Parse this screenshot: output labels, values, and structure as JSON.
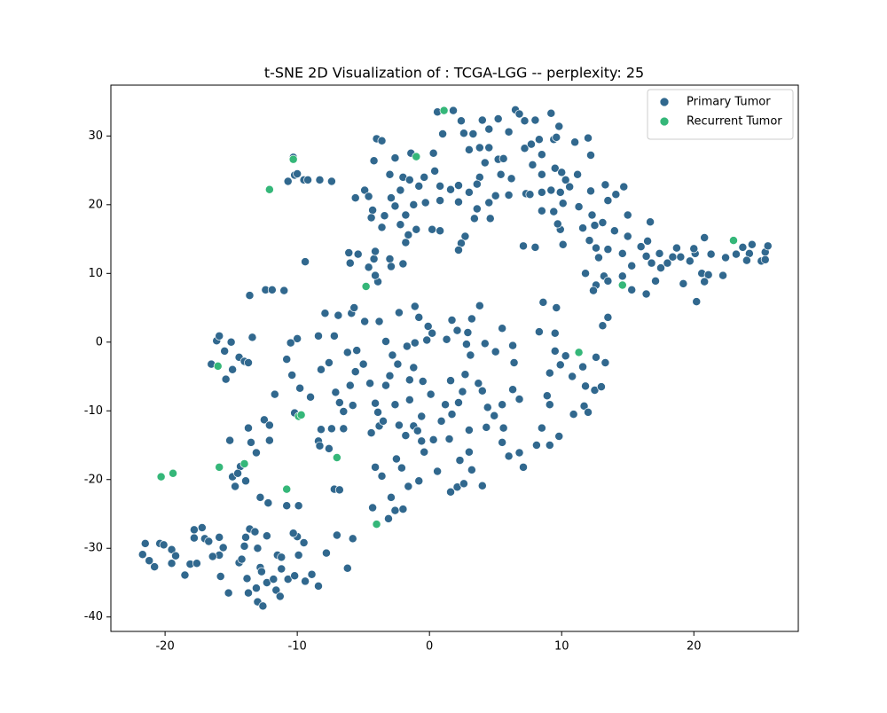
{
  "chart_data": {
    "type": "scatter",
    "title": "t-SNE 2D Visualization of : TCGA-LGG -- perplexity: 25",
    "xlim": [
      -24.1,
      27.9
    ],
    "ylim": [
      -42.1,
      37.4
    ],
    "xticks": [
      -20,
      -10,
      0,
      10,
      20
    ],
    "yticks": [
      -40,
      -30,
      -20,
      -10,
      0,
      10,
      20,
      30
    ],
    "legend": "upper right",
    "series": [
      {
        "name": "Primary Tumor",
        "color": "#31688e",
        "x": [
          -10.2,
          -10,
          -10.3,
          -9.5,
          -9.2,
          -7.4,
          -8.3,
          -10.7,
          -4,
          -3.6,
          -2.6,
          -4.2,
          -3,
          -2,
          -1.4,
          0.3,
          1,
          1.8,
          0.6,
          2.4,
          2.6,
          3.3,
          4,
          4.5,
          5.2,
          6.5,
          6.8,
          7.2,
          8,
          9.2,
          6,
          4.5,
          3.8,
          3,
          4.2,
          5.2,
          5.6,
          7.2,
          7.7,
          8.3,
          9.4,
          9.8,
          9.6,
          11,
          12,
          12.2,
          8.5,
          7.8,
          8.5,
          9.5,
          10,
          10.3,
          11.2,
          6.2,
          5.4,
          3.8,
          3.6,
          2.2,
          1.6,
          0.8,
          -0.8,
          -1.5,
          -0.4,
          0.4,
          -2.2,
          -2.9,
          -4.9,
          -4.6,
          -5.6,
          -4.3,
          -3.4,
          -2.6,
          -1.8,
          -1.2,
          -0.3,
          0.8,
          2.2,
          3,
          3.6,
          4.5,
          5,
          4.6,
          3.4,
          2.7,
          2.4,
          2.2,
          0.8,
          0.2,
          -1,
          -1.6,
          -2.2,
          -3.6,
          -4.4,
          -1.8,
          -2,
          -3,
          -2.9,
          -4.2,
          -4.1,
          -5.4,
          -6.1,
          -6,
          -4.6,
          -9.4,
          -3.9,
          -4.1,
          6,
          7.3,
          7.6,
          8.5,
          9.2,
          9.9,
          10.6,
          10.1,
          11.3,
          12.2,
          13.3,
          14.1,
          14.7,
          13.5,
          12.3,
          11.6,
          12.5,
          13.1,
          14,
          15,
          16,
          16.7,
          15,
          9.9,
          9.7,
          9.4,
          8.5,
          7.1,
          8,
          10.1,
          12.1,
          12.6,
          12.8,
          13.5,
          14.6,
          15.3,
          14.6,
          13.2,
          12.6,
          11.8,
          12.4,
          13.5,
          15.3,
          16.4,
          17.1,
          17.5,
          16.8,
          16.4,
          18,
          18.4,
          19,
          19.2,
          19.7,
          20.1,
          20,
          20.6,
          21.1,
          20.8,
          21.3,
          22.2,
          22.4,
          23.2,
          23.7,
          24.4,
          24.2,
          24,
          25.1,
          25.4,
          25.6,
          25.4,
          20.2,
          20.8,
          18.7,
          16.5,
          17.4,
          -10,
          -10.5,
          -10.8,
          -10.4,
          -11.7,
          -9.8,
          -9,
          -8.4,
          -8.2,
          -7.6,
          -7.2,
          -7.1,
          -6.8,
          -6.5,
          -7.4,
          -8.2,
          -8.4,
          -8.3,
          -7.6,
          -6.5,
          -5.8,
          -6,
          -5.6,
          -5,
          -6.2,
          -5.9,
          -5.7,
          -6.9,
          -7.9,
          -4.9,
          -3.8,
          -3.3,
          -2.8,
          -2.4,
          -3,
          -3.3,
          -4.5,
          -4.1,
          -3.9,
          -3.8,
          -4.4,
          -4.1,
          -3.6,
          -2.5,
          -2.1,
          -1.6,
          -0.8,
          -2.9,
          -2,
          -2.6,
          -3.1,
          -4.3,
          -5.8,
          -7,
          -6.2,
          -7.2,
          -6.8,
          -2.3,
          -1.1,
          -0.8,
          -0.1,
          0.2,
          -0.2,
          -1.1,
          -1.7,
          -1.2,
          -0.5,
          0.1,
          -0.6,
          -1.2,
          -1.8,
          -0.6,
          0.3,
          -0.4,
          0.6,
          1.6,
          2.1,
          2.6,
          4,
          3.2,
          2.3,
          3,
          1.5,
          1.7,
          2.2,
          2.5,
          1.6,
          2.7,
          3.7,
          4,
          3.1,
          2.8,
          2.9,
          2.1,
          1.3,
          1.7,
          3.2,
          3.8,
          4.2,
          5,
          5.5,
          6.3,
          6.4,
          6.3,
          6.8,
          5.5,
          4.9,
          4.3,
          5.6,
          5.5,
          6,
          7.1,
          8.1,
          8.5,
          9.1,
          8.9,
          9.1,
          9.9,
          9.5,
          8.3,
          9.5,
          9.6,
          8.6,
          10.3,
          10.8,
          10.9,
          11.7,
          12,
          12.5,
          11.8,
          11.6,
          12.6,
          13,
          13.3,
          13.1,
          13.5,
          9.8,
          9.1,
          6.8,
          -1.5,
          -1.5,
          -2.6,
          -3.5,
          -2.3,
          -0.9,
          0.9,
          1.2,
          3,
          4.4,
          -5.5,
          -10.2,
          -12.5,
          -12.1,
          -13.7,
          -12.1,
          -13.5,
          -13.1,
          -16.1,
          -15.9,
          -15,
          -15.5,
          -14.4,
          -13.4,
          -14,
          -13.7,
          -14.9,
          -15.4,
          -16.5,
          -14.9,
          -14.3,
          -14.5,
          -13.9,
          -14.7,
          -15.1,
          -12.8,
          -12.2,
          -10.8,
          -9.9,
          -21.7,
          -21.2,
          -20.8,
          -21.5,
          -20.4,
          -20.1,
          -19.5,
          -19.2,
          -19.5,
          -18.5,
          -18.1,
          -17.6,
          -17.8,
          -17.8,
          -17.2,
          -17,
          -16.7,
          -15.9,
          -15.6,
          -15.9,
          -16.4,
          -15.8,
          -15.2,
          -14.4,
          -14.2,
          -14,
          -13.9,
          -13.6,
          -13.2,
          -13,
          -12.3,
          -12.8,
          -12.7,
          -12.3,
          -13.1,
          -13.8,
          -13.7,
          -13,
          -12.6,
          -11.8,
          -11.6,
          -11.3,
          -11.2,
          -11.5,
          -11.2,
          -10.7,
          -10.2,
          -9.9,
          -10,
          -10.3,
          -9.5,
          -9.4,
          -8.9,
          -8.4,
          -7.8,
          -13.6,
          -12.4,
          -11.9,
          -11
        ],
        "values": [
          24.3,
          24.5,
          26.9,
          23.6,
          23.6,
          23.4,
          23.6,
          23.4,
          29.6,
          29.3,
          26.8,
          26.4,
          24.4,
          24,
          27.5,
          27.5,
          30.3,
          33.7,
          33.5,
          32.2,
          30.4,
          30.3,
          32.3,
          31,
          32.5,
          33.8,
          33.2,
          32.2,
          32.3,
          33.3,
          30.6,
          28.3,
          28.3,
          28,
          26.1,
          26.6,
          26.7,
          28.2,
          28.8,
          29.5,
          29.5,
          31.4,
          29.8,
          29.1,
          29.7,
          27.2,
          27.3,
          25.8,
          24.4,
          25.3,
          24.7,
          23.6,
          24.4,
          23.8,
          24.4,
          24,
          23,
          22.8,
          22.2,
          22.7,
          22.7,
          23.6,
          24,
          24.9,
          22.1,
          21,
          22.1,
          21.2,
          21,
          19.2,
          18.4,
          19.8,
          18.5,
          20,
          20.3,
          20.6,
          20.4,
          21.8,
          19.4,
          20.3,
          21.3,
          18,
          18,
          15.4,
          14.4,
          13.4,
          16.2,
          16.4,
          16.4,
          15.6,
          17.1,
          16.7,
          18.1,
          14.5,
          11.4,
          12.1,
          11,
          12.1,
          13.2,
          12.8,
          13,
          11.5,
          10.9,
          11.7,
          8.8,
          9.7,
          21.4,
          21.6,
          21.5,
          21.8,
          22.1,
          21.8,
          22.6,
          20.2,
          19.7,
          22,
          22.9,
          21.5,
          22.6,
          20.6,
          18.5,
          16.6,
          17,
          17.4,
          16.2,
          15.4,
          13.9,
          17.5,
          18.5,
          16.4,
          17.2,
          19,
          19.1,
          14,
          13.8,
          14.2,
          14.8,
          13.7,
          12.3,
          13.5,
          12.9,
          11.1,
          9.6,
          9.6,
          8.3,
          10,
          7.5,
          8.9,
          7.6,
          7,
          8.9,
          10.8,
          11.5,
          12.5,
          11.5,
          12.4,
          12.4,
          8.5,
          11.8,
          12.9,
          13.6,
          10,
          9.8,
          8.8,
          12.8,
          9.7,
          12.3,
          12.8,
          13.8,
          14.2,
          12.9,
          11.9,
          11.8,
          13.1,
          14,
          12,
          5.9,
          15.2,
          13.7,
          14.7,
          12.9,
          0.5,
          -0.1,
          -2.5,
          -4.8,
          -7.6,
          -6.7,
          -8,
          0.9,
          -4,
          -3,
          0.9,
          -7.3,
          -8.8,
          -10.1,
          -12.6,
          -12.7,
          -14.4,
          -15.1,
          -15.5,
          -12.6,
          -9.2,
          -6.3,
          -4.3,
          -3.2,
          -1.5,
          4.2,
          5,
          3.9,
          4.2,
          3,
          3,
          0.1,
          -1.9,
          -3.2,
          -4.9,
          -6.3,
          -6,
          -8.9,
          -10.2,
          -12.2,
          -13.2,
          -18.2,
          -19.5,
          -17,
          -18.3,
          -21,
          -20.2,
          -22.6,
          -24.3,
          -24.5,
          -25.7,
          -24.1,
          -28.6,
          -28.1,
          -32.9,
          -21.4,
          -21.5,
          4.3,
          5.2,
          3.6,
          2.3,
          1.3,
          0.3,
          -0.1,
          -0.6,
          -3.7,
          -5.7,
          -7.6,
          -10.8,
          -12.2,
          -13.6,
          -14.4,
          -14.2,
          -16,
          -18.8,
          -21.8,
          -21.1,
          -20.6,
          -20.9,
          -18.6,
          -17.2,
          -16,
          -14.1,
          -10.5,
          -8.8,
          -7.2,
          -5.6,
          -4.7,
          -6,
          -7.1,
          -1.9,
          -0.3,
          1.4,
          1.7,
          0.4,
          3.2,
          3.4,
          5.3,
          -0.2,
          -1.4,
          2,
          -0.5,
          -3,
          -6.9,
          -8.3,
          -9.1,
          -10.7,
          -12.4,
          -12.5,
          -14.6,
          -16.6,
          -18.2,
          -15,
          -12.5,
          -9.1,
          -7.8,
          -4.5,
          -3.3,
          -1.3,
          1.5,
          1.3,
          5,
          5.8,
          -2,
          -5,
          -10.5,
          -9.3,
          -10.2,
          -7,
          -6.4,
          -3.6,
          -2.2,
          -6.5,
          -3,
          2.4,
          3.6,
          -13.7,
          -15,
          -16.1,
          -5.5,
          -8.4,
          -9.1,
          -11.5,
          -12.1,
          -12.9,
          -11.5,
          -9.1,
          -12.8,
          -9.5,
          -1.2,
          -10.3,
          -11.3,
          -12.1,
          -12.5,
          -14.3,
          -14.6,
          -16.1,
          0.2,
          0.9,
          0,
          -1.3,
          -2.2,
          0.7,
          -2.8,
          -3,
          -4,
          -5.4,
          -3.2,
          -19.6,
          -18.1,
          -19.1,
          -20.2,
          -21,
          -14.3,
          -22.6,
          -23.4,
          -23.8,
          -23.8,
          -30.9,
          -31.8,
          -32.7,
          -29.3,
          -29.3,
          -29.5,
          -30.2,
          -31.1,
          -32.2,
          -33.9,
          -32.3,
          -32.2,
          -28.5,
          -27.3,
          -27,
          -28.6,
          -29,
          -28.4,
          -29.9,
          -31,
          -31.2,
          -34.1,
          -36.5,
          -32.1,
          -31.6,
          -29.7,
          -28.4,
          -27.2,
          -27.6,
          -30,
          -28.2,
          -32.8,
          -33.4,
          -35,
          -35.8,
          -34.4,
          -36.5,
          -37.8,
          -38.4,
          -34.5,
          -36.1,
          -37,
          -33,
          -31,
          -31.3,
          -34.5,
          -34,
          -31,
          -28.3,
          -27.8,
          -29.2,
          -34.8,
          -33.8,
          -35.5,
          -30.7,
          6.8,
          7.6,
          7.6,
          7.5
        ]
      },
      {
        "name": "Recurrent Tumor",
        "color": "#35b779",
        "x": [
          1.1,
          -1,
          -10.3,
          -12.1,
          -4.8,
          23,
          14.6,
          11.3,
          -16,
          -9.9,
          -9.7,
          -7,
          -14,
          -15.9,
          -20.3,
          -19.4,
          -10.8,
          -4
        ],
        "values": [
          33.7,
          27,
          26.6,
          22.2,
          8.1,
          14.8,
          8.3,
          -1.5,
          -3.5,
          -10.8,
          -10.6,
          -16.8,
          -17.7,
          -18.2,
          -19.6,
          -19.1,
          -21.4,
          -26.5
        ]
      }
    ]
  }
}
